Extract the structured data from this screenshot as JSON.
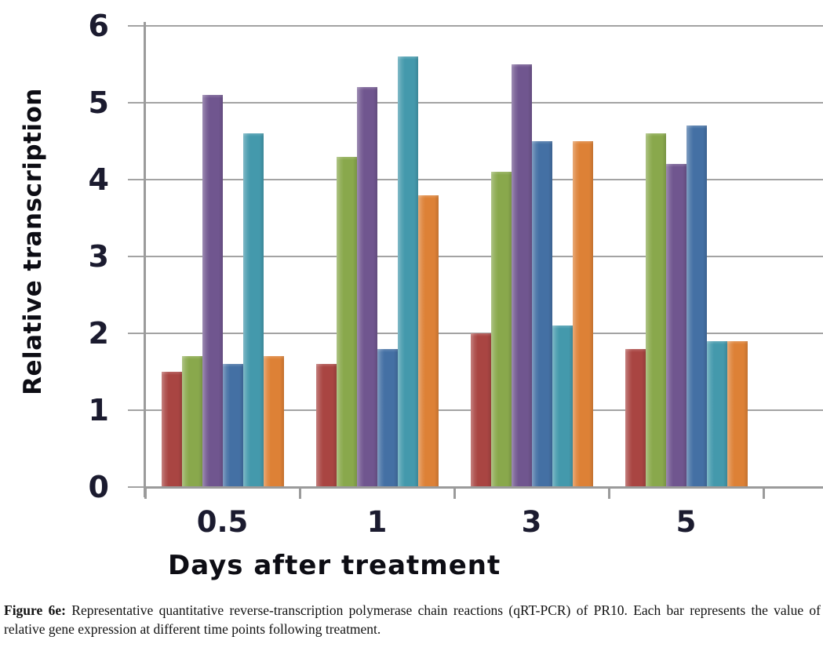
{
  "figure": {
    "caption_label": "Figure 6e:",
    "caption_text": " Representative quantitative reverse-transcription polymerase chain reactions (qRT-PCR) of PR10. Each bar represents the value of relative gene expression at different time points following treatment."
  },
  "chart_data": {
    "type": "bar",
    "title": "",
    "xlabel": "Days after treatment",
    "ylabel": "Relative transcription",
    "categories": [
      "0.5",
      "1",
      "3",
      "5"
    ],
    "series": [
      {
        "name": "red",
        "color": "#a94542",
        "values": [
          1.5,
          1.6,
          2.0,
          1.8
        ]
      },
      {
        "name": "green",
        "color": "#89a84c",
        "values": [
          1.7,
          4.3,
          4.1,
          4.6
        ]
      },
      {
        "name": "purple",
        "color": "#70568f",
        "values": [
          5.1,
          5.2,
          5.5,
          4.2
        ]
      },
      {
        "name": "blue",
        "color": "#4470a4",
        "values": [
          1.6,
          1.8,
          4.5,
          4.7
        ]
      },
      {
        "name": "teal",
        "color": "#4499ac",
        "values": [
          4.6,
          5.6,
          2.1,
          1.9
        ]
      },
      {
        "name": "orange",
        "color": "#dd8136",
        "values": [
          1.7,
          3.8,
          4.5,
          1.9
        ]
      }
    ],
    "ylim": [
      0,
      6
    ],
    "yticks": [
      0,
      1,
      2,
      3,
      4,
      5,
      6
    ],
    "grid": true,
    "legend": "none"
  },
  "style": {
    "grid_color": "#a3a3a3",
    "axis_color": "#9b9b9b",
    "tick_label_color": "#1b1b2f"
  }
}
